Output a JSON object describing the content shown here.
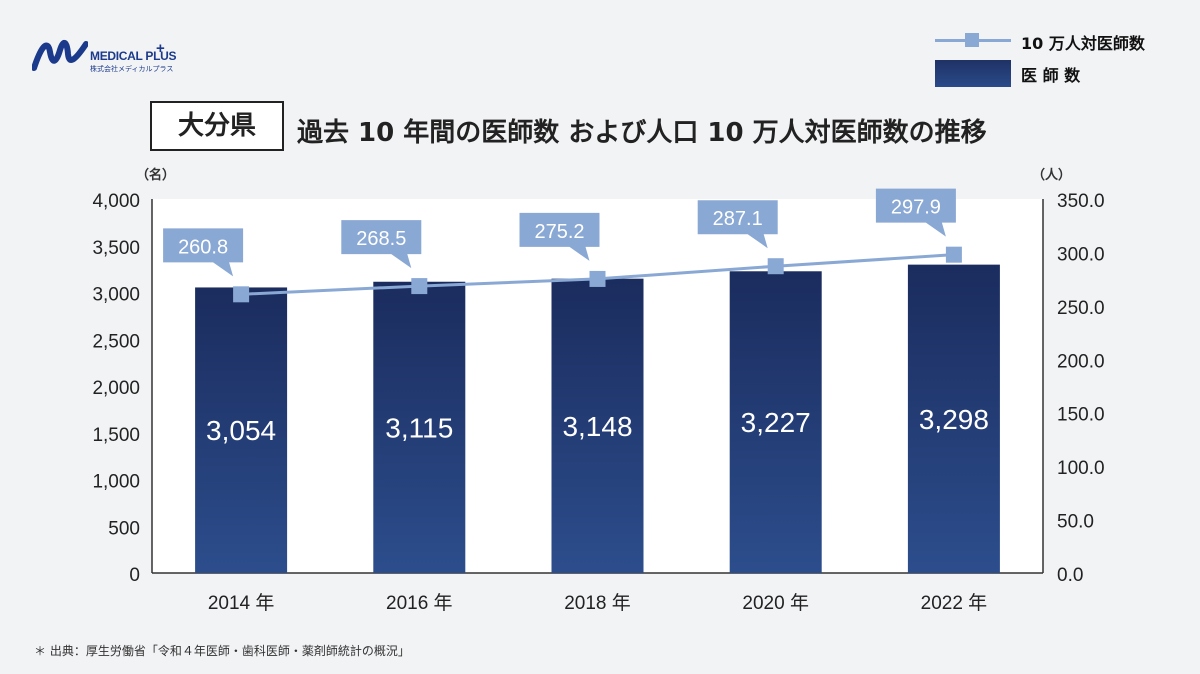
{
  "logo": {
    "brand": "MEDICAL PLUS",
    "plus": "+",
    "subtitle": "株式会社メディカルプラス",
    "icon": "medical-plus-logo-icon",
    "color": "#1b3a8c"
  },
  "legend": {
    "line_label": "10 万人対医師数",
    "bar_label": "医 師 数"
  },
  "title": {
    "region": "大分県",
    "text": "過去 10 年間の医師数 および人口 10 万人対医師数の推移"
  },
  "units": {
    "left": "（名）",
    "right": "（人）"
  },
  "source": "＊ 出典：厚生労働省「令和４年医師・歯科医師・薬剤師統計の概況」",
  "colors": {
    "bar_top": "#1b2c5e",
    "bar_bottom": "#2c4d8c",
    "line": "#8aa8d4",
    "callout": "#8aa8d4",
    "plot_bg": "#ffffff"
  },
  "chart_data": {
    "type": "bar",
    "categories": [
      "2014 年",
      "2016 年",
      "2018 年",
      "2020 年",
      "2022 年"
    ],
    "series": [
      {
        "name": "医 師 数",
        "type": "bar",
        "axis": "left",
        "values": [
          3054,
          3115,
          3148,
          3227,
          3298
        ],
        "labels": [
          "3,054",
          "3,115",
          "3,148",
          "3,227",
          "3,298"
        ]
      },
      {
        "name": "10 万人対医師数",
        "type": "line",
        "axis": "right",
        "values": [
          260.8,
          268.5,
          275.2,
          287.1,
          297.9
        ],
        "labels": [
          "260.8",
          "268.5",
          "275.2",
          "287.1",
          "297.9"
        ]
      }
    ],
    "ylim": [
      0,
      4000
    ],
    "yticks": [
      "0",
      "500",
      "1,000",
      "1,500",
      "2,000",
      "2,500",
      "3,000",
      "3,500",
      "4,000"
    ],
    "y2lim": [
      0,
      350
    ],
    "y2ticks": [
      "0.0",
      "50.0",
      "100.0",
      "150.0",
      "200.0",
      "250.0",
      "300.0",
      "350.0"
    ],
    "grid": false,
    "legend_position": "top-right"
  }
}
